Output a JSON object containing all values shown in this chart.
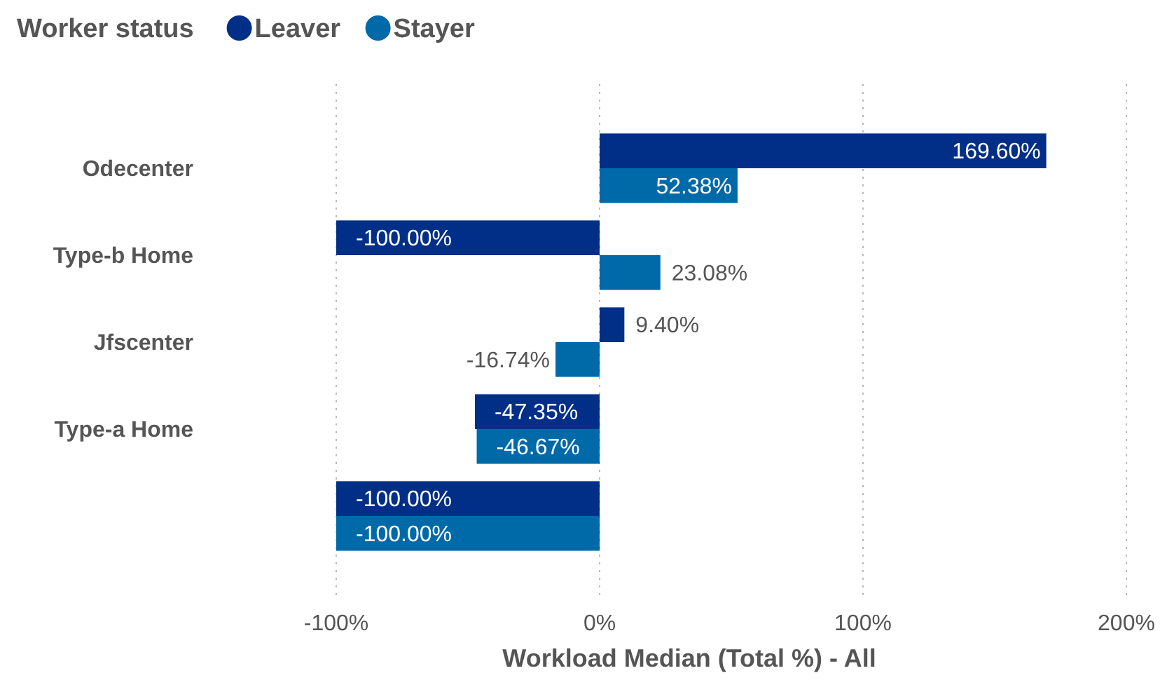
{
  "chart_data": {
    "type": "bar",
    "orientation": "horizontal",
    "legend_title": "Worker status",
    "legend": "top left",
    "xlabel": "Workload Median (Total %) - All",
    "categories": [
      "Odecenter",
      "Type-b Home",
      "Jfscenter",
      "Type-a Home",
      null
    ],
    "series": [
      {
        "name": "Leaver",
        "color": "#012f87",
        "values": [
          169.6,
          -100,
          9.4,
          -47.35,
          -100
        ],
        "value_labels": [
          "169.60%",
          "-100.00%",
          "9.40%",
          "-47.35%",
          "-100.00%"
        ]
      },
      {
        "name": "Stayer",
        "color": "#0069a8",
        "values": [
          52.38,
          23.08,
          -16.74,
          -46.67,
          -100
        ],
        "value_labels": [
          "52.38%",
          "23.08%",
          "-16.74%",
          "-46.67%",
          "-100.00%"
        ]
      }
    ],
    "xlim": [
      -100,
      200
    ],
    "xticks": [
      {
        "value": -100,
        "label": "-100%"
      },
      {
        "value": 0,
        "label": "0%"
      },
      {
        "value": 100,
        "label": "100%"
      },
      {
        "value": 200,
        "label": "200%"
      }
    ],
    "grid": "x"
  }
}
